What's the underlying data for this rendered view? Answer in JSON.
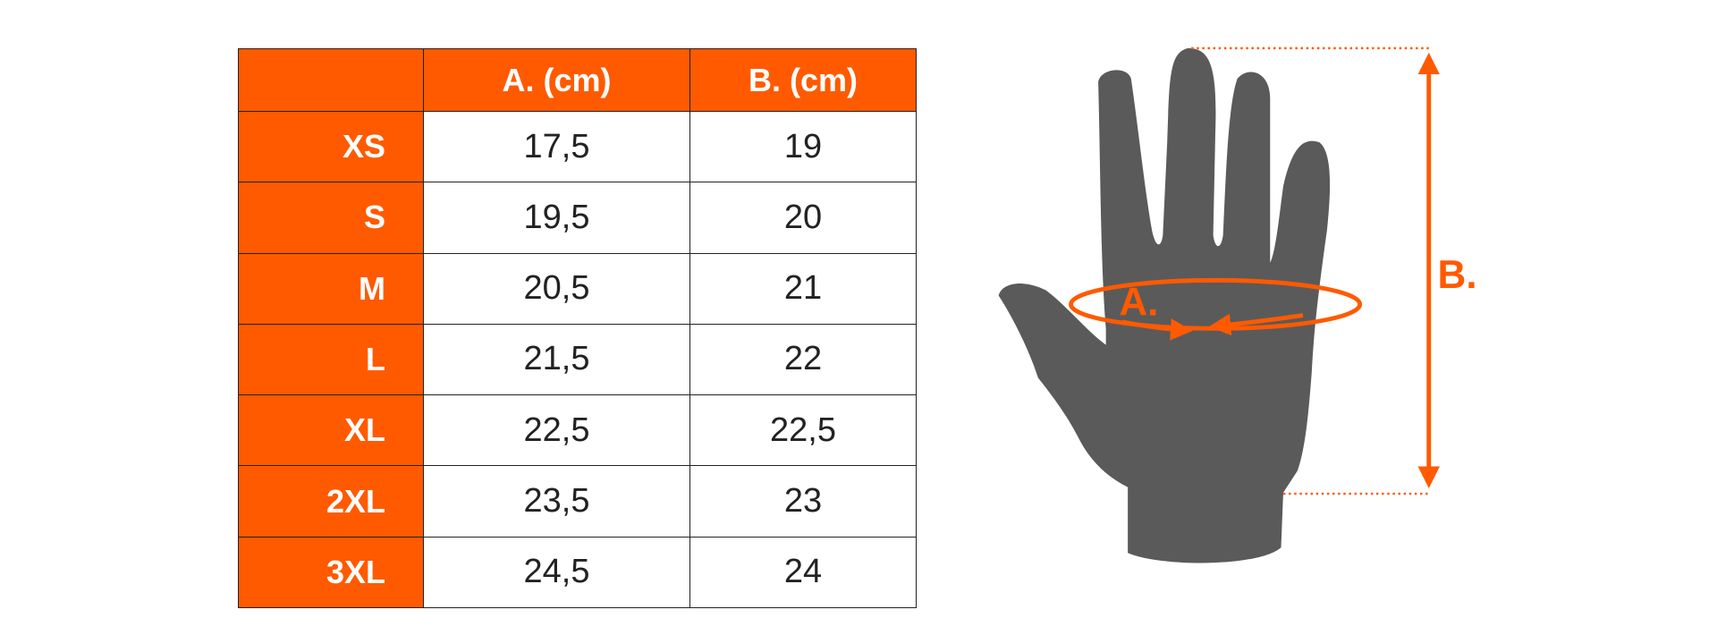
{
  "colors": {
    "accent": "#ff5a00",
    "hand": "#5a5a5a",
    "text": "#222222"
  },
  "table": {
    "headers": [
      "",
      "A. (cm)",
      "B. (cm)"
    ],
    "rows": [
      {
        "size": "XS",
        "a": "17,5",
        "b": "19"
      },
      {
        "size": "S",
        "a": "19,5",
        "b": "20"
      },
      {
        "size": "M",
        "a": "20,5",
        "b": "21"
      },
      {
        "size": "L",
        "a": "21,5",
        "b": "22"
      },
      {
        "size": "XL",
        "a": "22,5",
        "b": "22,5"
      },
      {
        "size": "2XL",
        "a": "23,5",
        "b": "23"
      },
      {
        "size": "3XL",
        "a": "24,5",
        "b": "24"
      }
    ]
  },
  "diagram": {
    "label_a": "A.",
    "label_b": "B."
  }
}
